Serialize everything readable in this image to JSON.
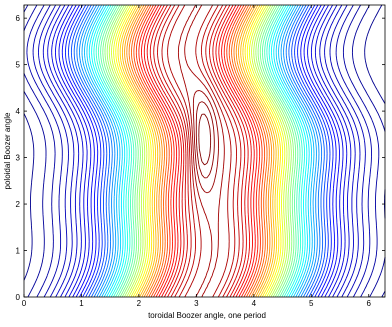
{
  "chart_data": {
    "type": "contour",
    "xlabel": "toroidal Boozer angle, one period",
    "ylabel": "poloidal Boozer angle",
    "xlim": [
      0,
      6.2832
    ],
    "ylim": [
      0,
      6.2832
    ],
    "x_ticks": [
      0,
      1,
      2,
      3,
      4,
      5,
      6
    ],
    "y_ticks": [
      0,
      1,
      2,
      3,
      4,
      5,
      6
    ],
    "grid": false,
    "legend": "none",
    "colormap": "jet",
    "levels": 56,
    "colors": [
      "#00008f",
      "#0000ff",
      "#00ffff",
      "#ffff00",
      "#ff0000",
      "#800000"
    ]
  }
}
